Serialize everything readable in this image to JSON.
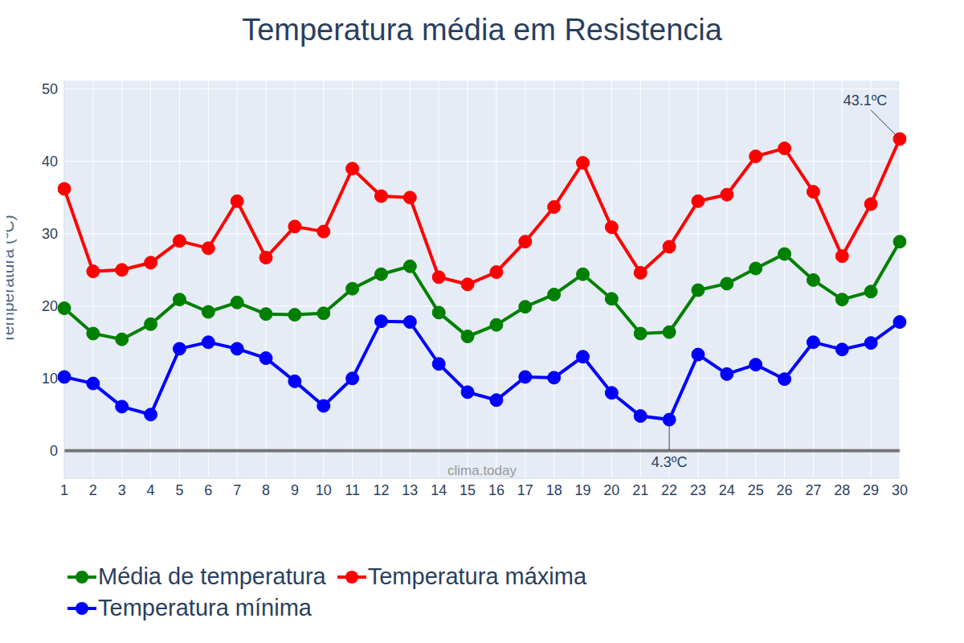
{
  "chart_data": {
    "type": "line",
    "title": "Temperatura média em Resistencia",
    "y_label": "Temperatura (ºC)",
    "watermark": "clima.today",
    "x": [
      1,
      2,
      3,
      4,
      5,
      6,
      7,
      8,
      9,
      10,
      11,
      12,
      13,
      14,
      15,
      16,
      17,
      18,
      19,
      20,
      21,
      22,
      23,
      24,
      25,
      26,
      27,
      28,
      29,
      30
    ],
    "xlim": [
      1,
      30
    ],
    "xticks": [
      1,
      2,
      3,
      4,
      5,
      6,
      7,
      8,
      9,
      10,
      11,
      12,
      13,
      14,
      15,
      16,
      17,
      18,
      19,
      20,
      21,
      22,
      23,
      24,
      25,
      26,
      27,
      28,
      29,
      30
    ],
    "ylim": [
      -3.8,
      51.2
    ],
    "yticks": [
      0,
      10,
      20,
      30,
      40,
      50
    ],
    "grid": true,
    "legend": "bottom",
    "series": [
      {
        "name": "Média de temperatura",
        "color": "#008000",
        "marker": "circle",
        "values": [
          19.7,
          16.2,
          15.4,
          17.5,
          20.9,
          19.2,
          20.5,
          18.9,
          18.8,
          19,
          22.4,
          24.4,
          25.5,
          19.1,
          15.8,
          17.4,
          19.9,
          21.6,
          24.4,
          21,
          16.2,
          16.4,
          22.2,
          23.1,
          25.2,
          27.2,
          23.6,
          20.9,
          22,
          28.9
        ]
      },
      {
        "name": "Temperatura máxima",
        "color": "#ff0000",
        "marker": "circle",
        "values": [
          36.2,
          24.8,
          25,
          26,
          29,
          28,
          34.5,
          26.7,
          31,
          30.3,
          39,
          35.2,
          35,
          24,
          23,
          24.7,
          28.9,
          33.7,
          39.8,
          30.9,
          24.6,
          28.2,
          34.5,
          35.4,
          40.7,
          41.8,
          35.8,
          26.9,
          34.1,
          43.1
        ]
      },
      {
        "name": "Temperatura mínima",
        "color": "#0000ff",
        "marker": "circle",
        "values": [
          10.2,
          9.3,
          6.1,
          5,
          14.1,
          15,
          14.1,
          12.8,
          9.6,
          6.2,
          10,
          17.9,
          17.8,
          12,
          8.1,
          7,
          10.2,
          10.1,
          13,
          8,
          4.8,
          4.3,
          13.3,
          10.6,
          11.9,
          9.9,
          15,
          14,
          14.9,
          17.8
        ]
      }
    ],
    "annotations": [
      {
        "x": 30,
        "y": 43.1,
        "text": "43.1ºC",
        "position": "above"
      },
      {
        "x": 22,
        "y": 4.3,
        "text": "4.3ºC",
        "position": "below"
      }
    ]
  }
}
